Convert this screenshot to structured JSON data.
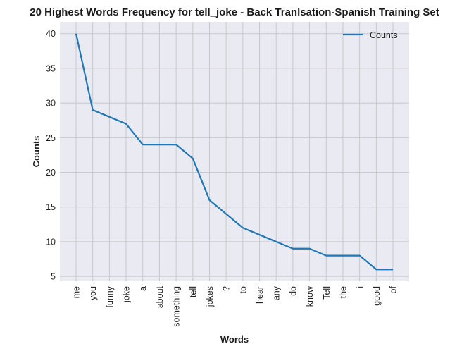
{
  "chart_data": {
    "type": "line",
    "title": "20 Highest Words Frequency for tell_joke - Back Tranlsation-Spanish Training Set",
    "xlabel": "Words",
    "ylabel": "Counts",
    "categories": [
      "me",
      "you",
      "funny",
      "joke",
      "a",
      "about",
      "something",
      "tell",
      "jokes",
      "?",
      "to",
      "hear",
      "any",
      "do",
      "know",
      "Tell",
      "the",
      "i",
      "good",
      "of"
    ],
    "series": [
      {
        "name": "Counts",
        "values": [
          40,
          29,
          28,
          27,
          24,
          24,
          24,
          22,
          16,
          14,
          12,
          11,
          10,
          9,
          9,
          8,
          8,
          8,
          6,
          6
        ]
      }
    ],
    "ylim": [
      4.3,
      41.7
    ],
    "yticks": [
      5,
      10,
      15,
      20,
      25,
      30,
      35,
      40
    ],
    "grid": true,
    "legend": "top-right",
    "colors": {
      "line": "#1f77b4",
      "background": "#eaeaf2",
      "grid": "#c8c8cc"
    }
  }
}
